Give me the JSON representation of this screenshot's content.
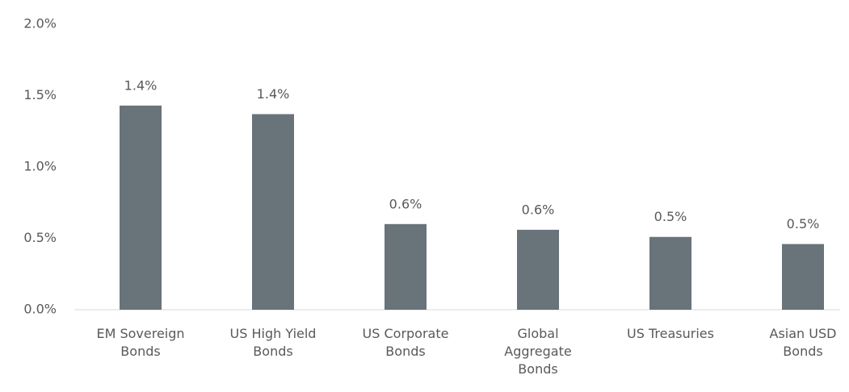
{
  "chart_data": {
    "type": "bar",
    "categories": [
      "EM Sovereign\nBonds",
      "US High Yield\nBonds",
      "US Corporate\nBonds",
      "Global\nAggregate\nBonds",
      "US Treasuries",
      "Asian USD\nBonds"
    ],
    "values": [
      1.43,
      1.37,
      0.6,
      0.56,
      0.51,
      0.46
    ],
    "value_labels": [
      "1.4%",
      "1.4%",
      "0.6%",
      "0.6%",
      "0.5%",
      "0.5%"
    ],
    "color": "#68737a",
    "ylim": [
      0,
      2.0
    ],
    "yticks": [
      {
        "value": 0,
        "label": "0.0%"
      },
      {
        "value": 0.5,
        "label": "0.5%"
      },
      {
        "value": 1.0,
        "label": "1.0%"
      },
      {
        "value": 1.5,
        "label": "1.5%"
      },
      {
        "value": 2.0,
        "label": "2.0%"
      }
    ],
    "grid": false
  }
}
